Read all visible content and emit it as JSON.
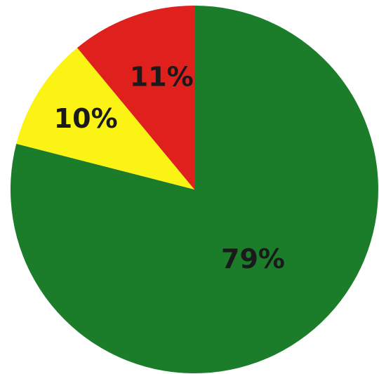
{
  "chart_data": {
    "type": "pie",
    "title": "",
    "start_angle_deg": 0,
    "direction": "clockwise",
    "slices": [
      {
        "label": "79%",
        "value": 79,
        "color": "#1b7d2a"
      },
      {
        "label": "10%",
        "value": 10,
        "color": "#fbf313"
      },
      {
        "label": "11%",
        "value": 11,
        "color": "#e0201c"
      }
    ]
  }
}
